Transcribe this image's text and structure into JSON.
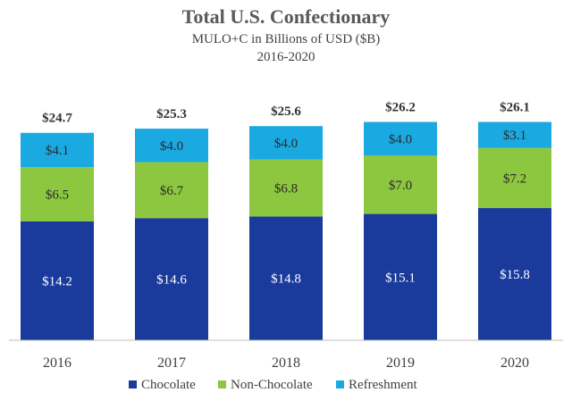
{
  "chart_data": {
    "type": "bar",
    "stacked": true,
    "title": "Total U.S. Confectionary",
    "subtitle_line1": "MULO+C  in Billions of USD  ($B)",
    "subtitle_line2": "2016-2020",
    "categories": [
      "2016",
      "2017",
      "2018",
      "2019",
      "2020"
    ],
    "totals": [
      "$24.7",
      "$25.3",
      "$25.6",
      "$26.2",
      "$26.1"
    ],
    "total_values": [
      24.7,
      25.3,
      25.6,
      26.2,
      26.1
    ],
    "series": [
      {
        "name": "Chocolate",
        "color": "#1a3a9c",
        "label_color": "#ffffff",
        "values": [
          14.2,
          14.6,
          14.8,
          15.1,
          15.8
        ],
        "labels": [
          "$14.2",
          "$14.6",
          "$14.8",
          "$15.1",
          "$15.8"
        ]
      },
      {
        "name": "Non-Chocolate",
        "color": "#8dc63f",
        "label_color": "#2b2b2b",
        "values": [
          6.5,
          6.7,
          6.8,
          7.0,
          7.2
        ],
        "labels": [
          "$6.5",
          "$6.7",
          "$6.8",
          "$7.0",
          "$7.2"
        ]
      },
      {
        "name": "Refreshment",
        "color": "#1ba9e1",
        "label_color": "#2b2b2b",
        "values": [
          4.1,
          4.0,
          4.0,
          4.0,
          3.1
        ],
        "labels": [
          "$4.1",
          "$4.0",
          "$4.0",
          "$4.0",
          "$3.1"
        ]
      }
    ],
    "legend_position": "bottom",
    "grid": false,
    "ylim": [
      0,
      30
    ]
  }
}
